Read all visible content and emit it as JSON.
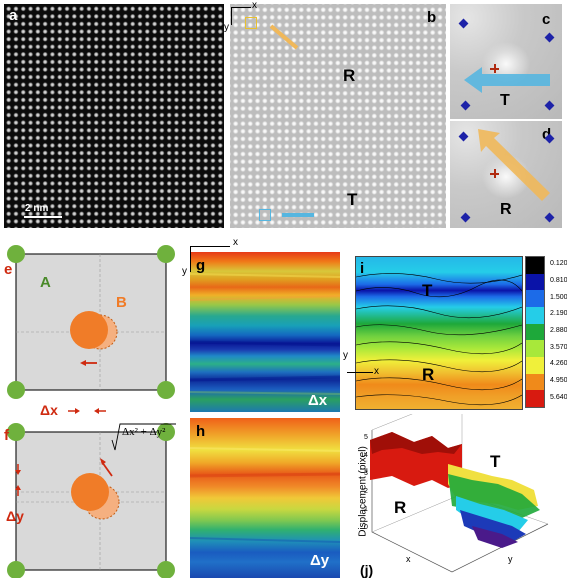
{
  "panels": {
    "a": {
      "label": "a",
      "scalebar": "2 nm"
    },
    "b": {
      "label": "b",
      "axis_x": "x",
      "axis_y": "y",
      "region_r": "R",
      "region_t": "T"
    },
    "c": {
      "label": "c",
      "region": "T"
    },
    "d": {
      "label": "d",
      "region": "R"
    },
    "e": {
      "label": "e",
      "site_a": "A",
      "site_b": "B"
    },
    "f": {
      "label": "f",
      "dx_label": "Δx",
      "dy_label": "Δy",
      "formula_inner": "Δx² + Δy²"
    },
    "g": {
      "label": "g",
      "axis_x": "x",
      "axis_y": "y",
      "map_label": "Δx"
    },
    "h": {
      "label": "h",
      "map_label": "Δy"
    },
    "i": {
      "label": "i",
      "axis_x": "x",
      "axis_y": "y",
      "region_t": "T",
      "region_r": "R"
    },
    "j": {
      "label": "(j)",
      "zlabel": "Displacement (pixel)",
      "region_t": "T",
      "region_r": "R",
      "ticks": [
        "0",
        "1",
        "2",
        "3",
        "4",
        "5"
      ],
      "axis_x": "x",
      "axis_y": "y"
    }
  },
  "colorbar": {
    "levels": [
      "0.1200",
      "0.8100",
      "1.500",
      "2.190",
      "2.880",
      "3.570",
      "4.260",
      "4.950",
      "5.640"
    ],
    "colors": [
      "#000000",
      "#0a13a8",
      "#1c6be8",
      "#25cde8",
      "#1ea83a",
      "#a8e83a",
      "#f0f03a",
      "#f08a1a",
      "#d81a10"
    ]
  },
  "colors": {
    "accent_red": "#cf2a10",
    "site_a": "#6fb13d",
    "site_b": "#f07c28",
    "arrow_blue": "#56b6e0",
    "arrow_orange": "#f0b85a"
  }
}
